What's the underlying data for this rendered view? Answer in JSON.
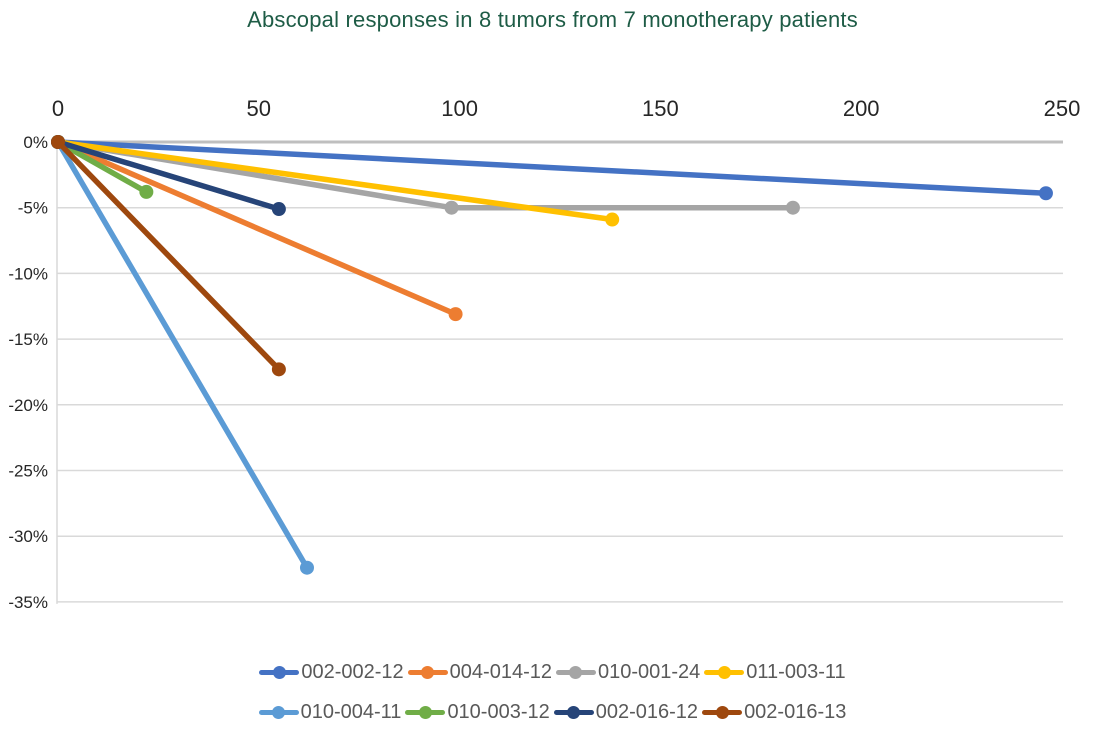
{
  "chart_data": {
    "type": "line",
    "title": "Abscopal responses in 8 tumors from 7 monotherapy patients",
    "xlabel": "",
    "ylabel": "",
    "xlim": [
      0,
      250
    ],
    "ylim": [
      -35,
      0
    ],
    "x_ticks": [
      0,
      50,
      100,
      150,
      200,
      250
    ],
    "y_ticks": [
      0,
      -5,
      -10,
      -15,
      -20,
      -25,
      -30,
      -35
    ],
    "y_tick_labels": [
      "0%",
      "-5%",
      "-10%",
      "-15%",
      "-20%",
      "-25%",
      "-30%",
      "-35%"
    ],
    "grid": "horizontal",
    "legend_position": "bottom",
    "x_axis_position": "top",
    "series": [
      {
        "name": "002-002-12",
        "color": "#4472C4",
        "points": [
          [
            0,
            0
          ],
          [
            246,
            -3.9
          ]
        ]
      },
      {
        "name": "004-014-12",
        "color": "#ED7D31",
        "points": [
          [
            0,
            0
          ],
          [
            99,
            -13.1
          ]
        ]
      },
      {
        "name": "010-001-24",
        "color": "#A5A5A5",
        "points": [
          [
            0,
            0
          ],
          [
            98,
            -5.0
          ],
          [
            183,
            -5.0
          ]
        ]
      },
      {
        "name": "011-003-11",
        "color": "#FFC000",
        "points": [
          [
            0,
            0
          ],
          [
            138,
            -5.9
          ]
        ]
      },
      {
        "name": "010-004-11",
        "color": "#5B9BD5",
        "points": [
          [
            0,
            0
          ],
          [
            62,
            -32.4
          ]
        ]
      },
      {
        "name": "010-003-12",
        "color": "#70AD47",
        "points": [
          [
            0,
            0
          ],
          [
            22,
            -3.8
          ]
        ]
      },
      {
        "name": "002-016-12",
        "color": "#264478",
        "points": [
          [
            0,
            0
          ],
          [
            55,
            -5.1
          ]
        ]
      },
      {
        "name": "002-016-13",
        "color": "#9E480E",
        "points": [
          [
            0,
            0
          ],
          [
            55,
            -17.3
          ]
        ]
      }
    ],
    "legend_rows": [
      [
        "002-002-12",
        "004-014-12",
        "010-001-24",
        "011-003-11"
      ],
      [
        "010-004-11",
        "010-003-12",
        "002-016-12",
        "002-016-13"
      ]
    ]
  },
  "colors": {
    "title": "#1E5C46",
    "axis_label": "#262626",
    "legend_text": "#595959",
    "axis_line": "#BFBFBF",
    "gridline": "#D9D9D9",
    "background": "#FFFFFF"
  }
}
